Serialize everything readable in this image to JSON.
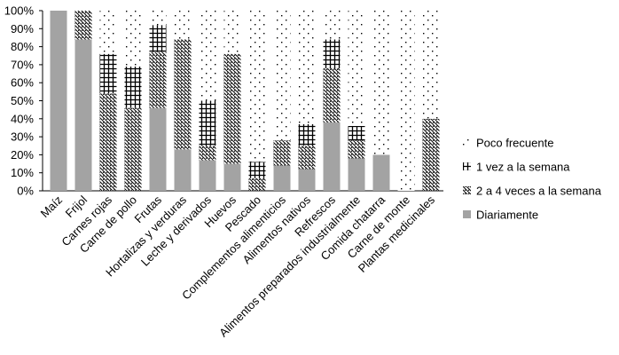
{
  "chart_data": {
    "type": "bar",
    "stacked": true,
    "ylim": [
      0,
      100
    ],
    "yticks": [
      "0%",
      "10%",
      "20%",
      "30%",
      "40%",
      "50%",
      "60%",
      "70%",
      "80%",
      "90%",
      "100%"
    ],
    "categories": [
      "Maíz",
      "Frijol",
      "Carnes rojas",
      "Carne de pollo",
      "Frutas",
      "Hortalizas y verduras",
      "Leche y derivados",
      "Huevos",
      "Pescado",
      "Complementos alimenticios",
      "Alimentos nativos",
      "Refrescos",
      "Alimentos preparados industrialmente",
      "Comida chatarra",
      "Carne de monte",
      "Plantas medicinales"
    ],
    "series": [
      {
        "name": "Diariamente",
        "values": [
          100,
          84,
          0,
          0,
          46,
          23,
          17,
          15,
          0,
          14,
          12,
          38,
          18,
          20,
          0,
          0
        ]
      },
      {
        "name": "2 a 4 veces a la semana",
        "values": [
          0,
          16,
          54,
          46,
          31,
          61,
          8,
          61,
          7,
          14,
          13,
          30,
          10,
          0,
          0,
          40
        ]
      },
      {
        "name": "1 vez a la semana",
        "values": [
          0,
          0,
          22,
          23,
          15,
          0,
          25,
          0,
          9,
          0,
          12,
          16,
          8,
          0,
          0,
          0
        ]
      },
      {
        "name": "Poco frecuente",
        "values": [
          0,
          0,
          24,
          31,
          8,
          16,
          50,
          24,
          84,
          72,
          63,
          16,
          64,
          80,
          100,
          60
        ]
      }
    ],
    "legend_position": "right",
    "legend_order": [
      "Poco frecuente",
      "1 vez a la semana",
      "2 a 4 veces a la semana",
      "Diariamente"
    ],
    "grid": false
  }
}
